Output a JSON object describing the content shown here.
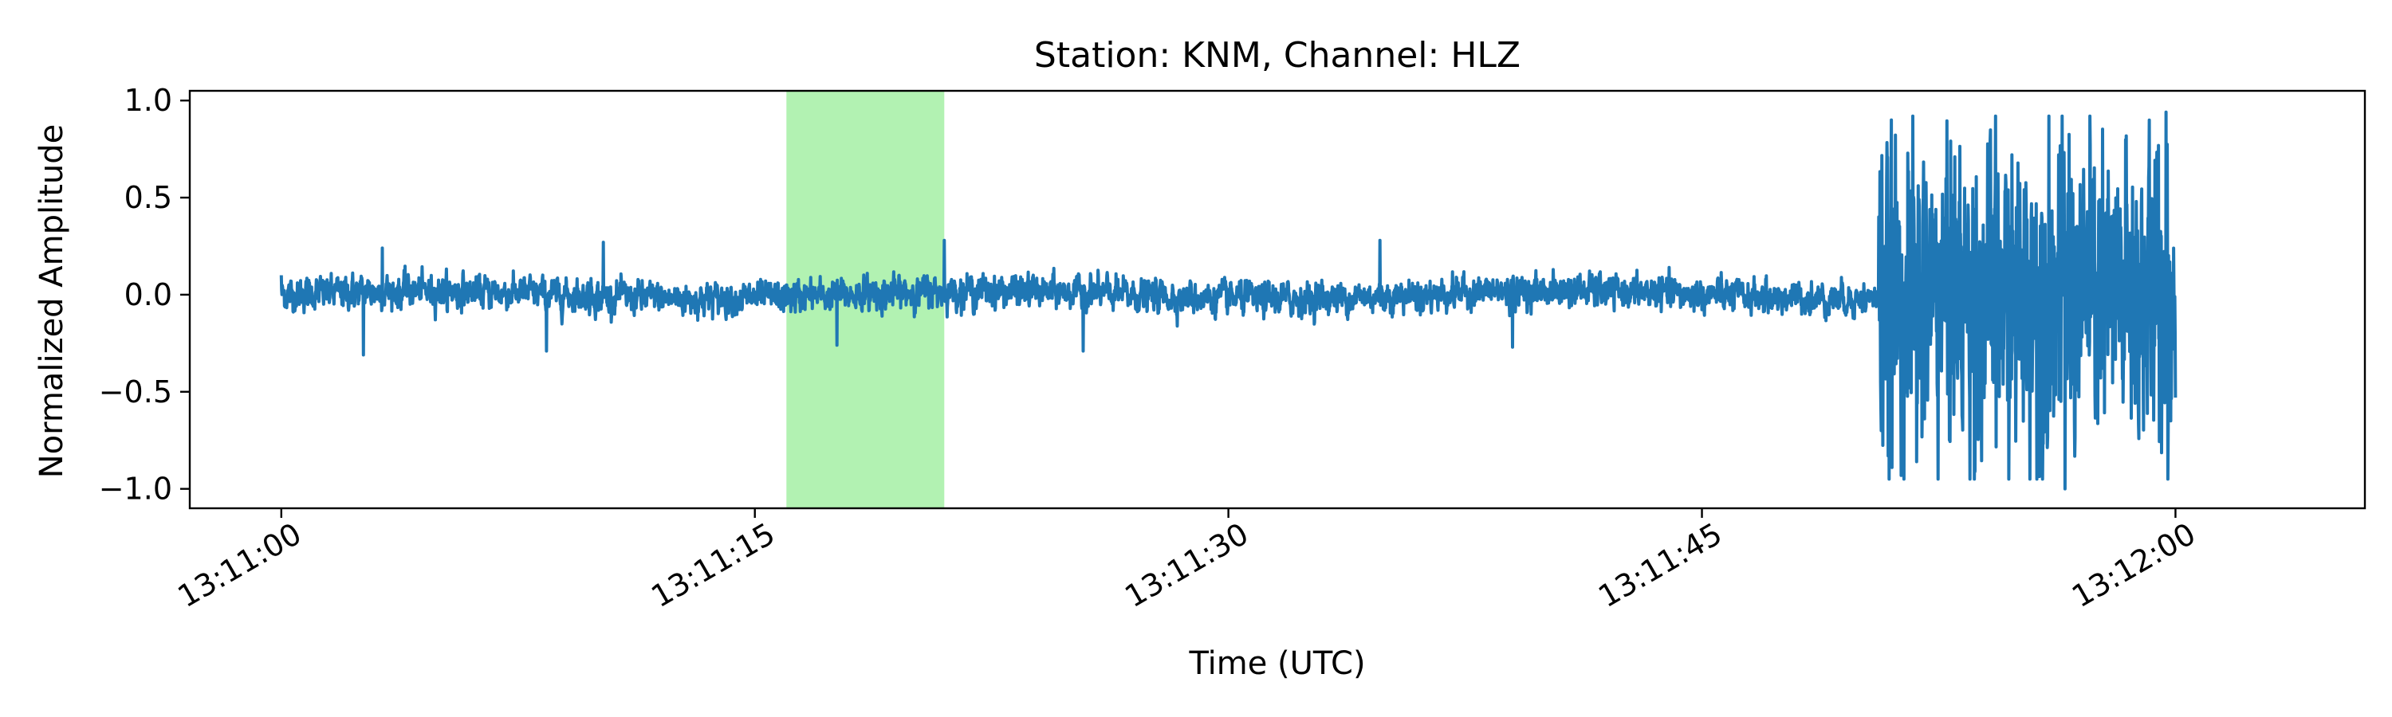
{
  "chart_data": {
    "type": "line",
    "title": "Station: KNM, Channel: HLZ",
    "xlabel": "Time (UTC)",
    "ylabel": "Normalized Amplitude",
    "x_unit": "seconds after 13:11:00 UTC",
    "xlim": [
      -2.9,
      66
    ],
    "ylim": [
      -1.1,
      1.05
    ],
    "x_ticks": [
      {
        "value": 0,
        "label": "13:11:00"
      },
      {
        "value": 15,
        "label": "13:11:15"
      },
      {
        "value": 30,
        "label": "13:11:30"
      },
      {
        "value": 45,
        "label": "13:11:45"
      },
      {
        "value": 60,
        "label": "13:12:00"
      }
    ],
    "y_ticks": [
      {
        "value": 1.0,
        "label": "1.0"
      },
      {
        "value": 0.5,
        "label": "0.5"
      },
      {
        "value": 0.0,
        "label": "0.0"
      },
      {
        "value": -0.5,
        "label": "−0.5"
      },
      {
        "value": -1.0,
        "label": "−1.0"
      }
    ],
    "highlight_band": {
      "x_start": 16.0,
      "x_end": 21.0,
      "color": "#b2f2b2"
    },
    "series": [
      {
        "color": "#1f77b4",
        "description": "waveform: low-amplitude noise (~±0.15) from 13:11:00 to ~13:11:50.5, then high-amplitude signal (~±0.9) until 13:12:00",
        "key_points": [
          {
            "x": 0.0,
            "y": 0.1
          },
          {
            "x": 2.6,
            "y": -0.31
          },
          {
            "x": 3.2,
            "y": 0.24
          },
          {
            "x": 8.4,
            "y": -0.29
          },
          {
            "x": 10.2,
            "y": 0.27
          },
          {
            "x": 17.6,
            "y": -0.26
          },
          {
            "x": 21.0,
            "y": 0.28
          },
          {
            "x": 25.4,
            "y": -0.29
          },
          {
            "x": 34.8,
            "y": 0.28
          },
          {
            "x": 39.0,
            "y": -0.27
          },
          {
            "x": 50.6,
            "y": 0.4
          },
          {
            "x": 50.9,
            "y": -0.83
          },
          {
            "x": 51.0,
            "y": 0.9
          },
          {
            "x": 51.8,
            "y": -0.86
          },
          {
            "x": 56.3,
            "y": 0.72
          },
          {
            "x": 56.5,
            "y": -1.0
          },
          {
            "x": 59.7,
            "y": 0.94
          },
          {
            "x": 60.0,
            "y": -0.53
          }
        ]
      }
    ],
    "grid": false,
    "legend": "none"
  }
}
